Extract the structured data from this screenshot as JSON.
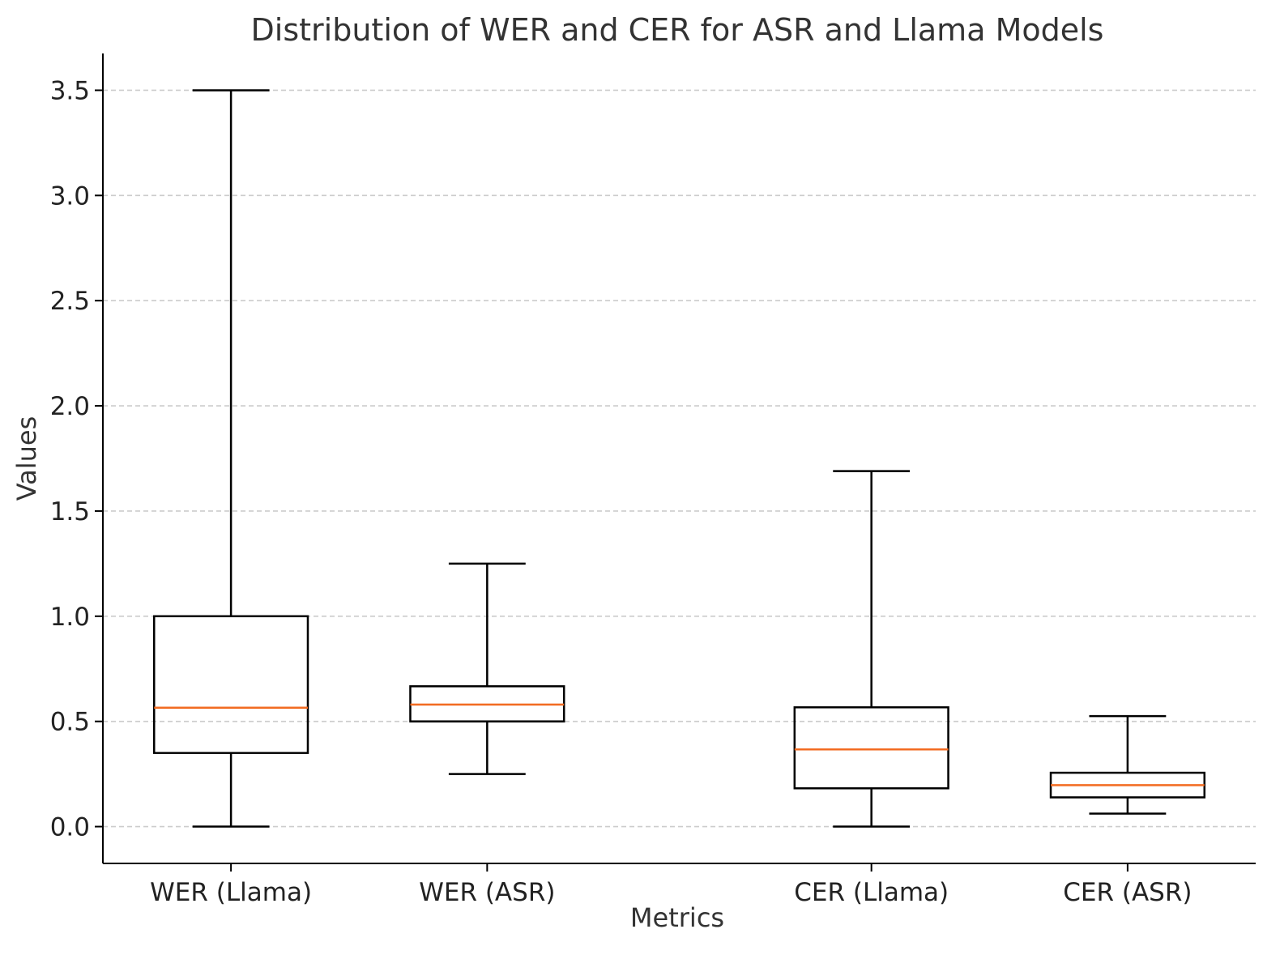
{
  "chart_data": {
    "type": "boxplot",
    "title": "Distribution of WER and CER for ASR and Llama Models",
    "xlabel": "Metrics",
    "ylabel": "Values",
    "ylim": [
      -0.175,
      3.675
    ],
    "yticks": [
      0.0,
      0.5,
      1.0,
      1.5,
      2.0,
      2.5,
      3.0,
      3.5
    ],
    "ytick_labels": [
      "0.0",
      "0.5",
      "1.0",
      "1.5",
      "2.0",
      "2.5",
      "3.0",
      "3.5"
    ],
    "grid": "y-dashed",
    "categories": [
      "WER (Llama)",
      "WER (ASR)",
      "CER (Llama)",
      "CER (ASR)"
    ],
    "positions": [
      1,
      2,
      3.5,
      4.5
    ],
    "boxes": [
      {
        "label": "WER (Llama)",
        "whisker_low": 0.0,
        "q1": 0.35,
        "median": 0.565,
        "q3": 1.0,
        "whisker_high": 3.5
      },
      {
        "label": "WER (ASR)",
        "whisker_low": 0.25,
        "q1": 0.5,
        "median": 0.58,
        "q3": 0.667,
        "whisker_high": 1.25
      },
      {
        "label": "CER (Llama)",
        "whisker_low": 0.0,
        "q1": 0.182,
        "median": 0.367,
        "q3": 0.567,
        "whisker_high": 1.69
      },
      {
        "label": "CER (ASR)",
        "whisker_low": 0.062,
        "q1": 0.139,
        "median": 0.197,
        "q3": 0.256,
        "whisker_high": 0.525
      }
    ],
    "colors": {
      "box": "#000000",
      "median": "#f26b21",
      "grid": "#cccccc",
      "axis": "#000000"
    }
  }
}
